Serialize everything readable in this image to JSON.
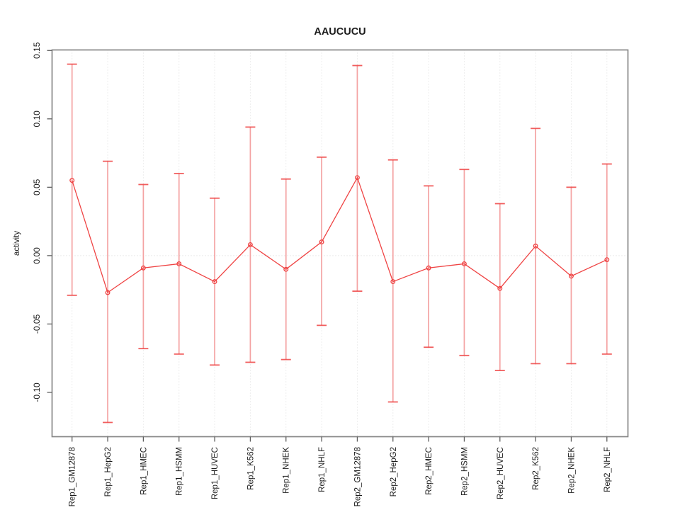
{
  "page": {
    "background": "#ffffff"
  },
  "chart_data": {
    "type": "line",
    "subtype": "points-with-error-bars",
    "title": "AAUCUCU",
    "xlabel": "",
    "ylabel": "activity",
    "legend": "none",
    "grid": "dotted vertical gridline at each category; dotted horizontal line at y=0",
    "categories": [
      "Rep1_GM12878",
      "Rep1_HepG2",
      "Rep1_HMEC",
      "Rep1_HSMM",
      "Rep1_HUVEC",
      "Rep1_K562",
      "Rep1_NHEK",
      "Rep1_NHLF",
      "Rep2_GM12878",
      "Rep2_HepG2",
      "Rep2_HMEC",
      "Rep2_HSMM",
      "Rep2_HUVEC",
      "Rep2_K562",
      "Rep2_NHEK",
      "Rep2_NHLF"
    ],
    "series": [
      {
        "name": "activity",
        "means": [
          0.055,
          -0.027,
          -0.009,
          -0.006,
          -0.019,
          0.008,
          -0.01,
          0.01,
          0.057,
          -0.019,
          -0.009,
          -0.006,
          -0.024,
          0.007,
          -0.015,
          -0.003
        ],
        "upper": [
          0.14,
          0.069,
          0.052,
          0.06,
          0.042,
          0.094,
          0.056,
          0.072,
          0.139,
          0.07,
          0.051,
          0.063,
          0.038,
          0.093,
          0.05,
          0.067
        ],
        "lower": [
          -0.029,
          -0.122,
          -0.068,
          -0.072,
          -0.08,
          -0.078,
          -0.076,
          -0.051,
          -0.026,
          -0.107,
          -0.067,
          -0.073,
          -0.084,
          -0.079,
          -0.079,
          -0.072
        ]
      }
    ],
    "yticks": [
      -0.1,
      -0.05,
      0.0,
      0.05,
      0.1,
      0.15
    ],
    "ytick_labels": [
      "-0.10",
      "-0.05",
      "0.00",
      "0.05",
      "0.10",
      "0.15"
    ],
    "ylim": [
      -0.1324,
      0.1504
    ],
    "marker": "open-circle",
    "colors": {
      "point_line": "#ef4343",
      "error_stem": "#f4a2a2",
      "error_cap": "#ef4343",
      "gridline": "#dcdcdc",
      "zero_line": "#d6d6d6",
      "frame": "#878787",
      "tick": "#5f5f5f",
      "text": "#1c1c1c",
      "background": "#ffffff"
    }
  }
}
